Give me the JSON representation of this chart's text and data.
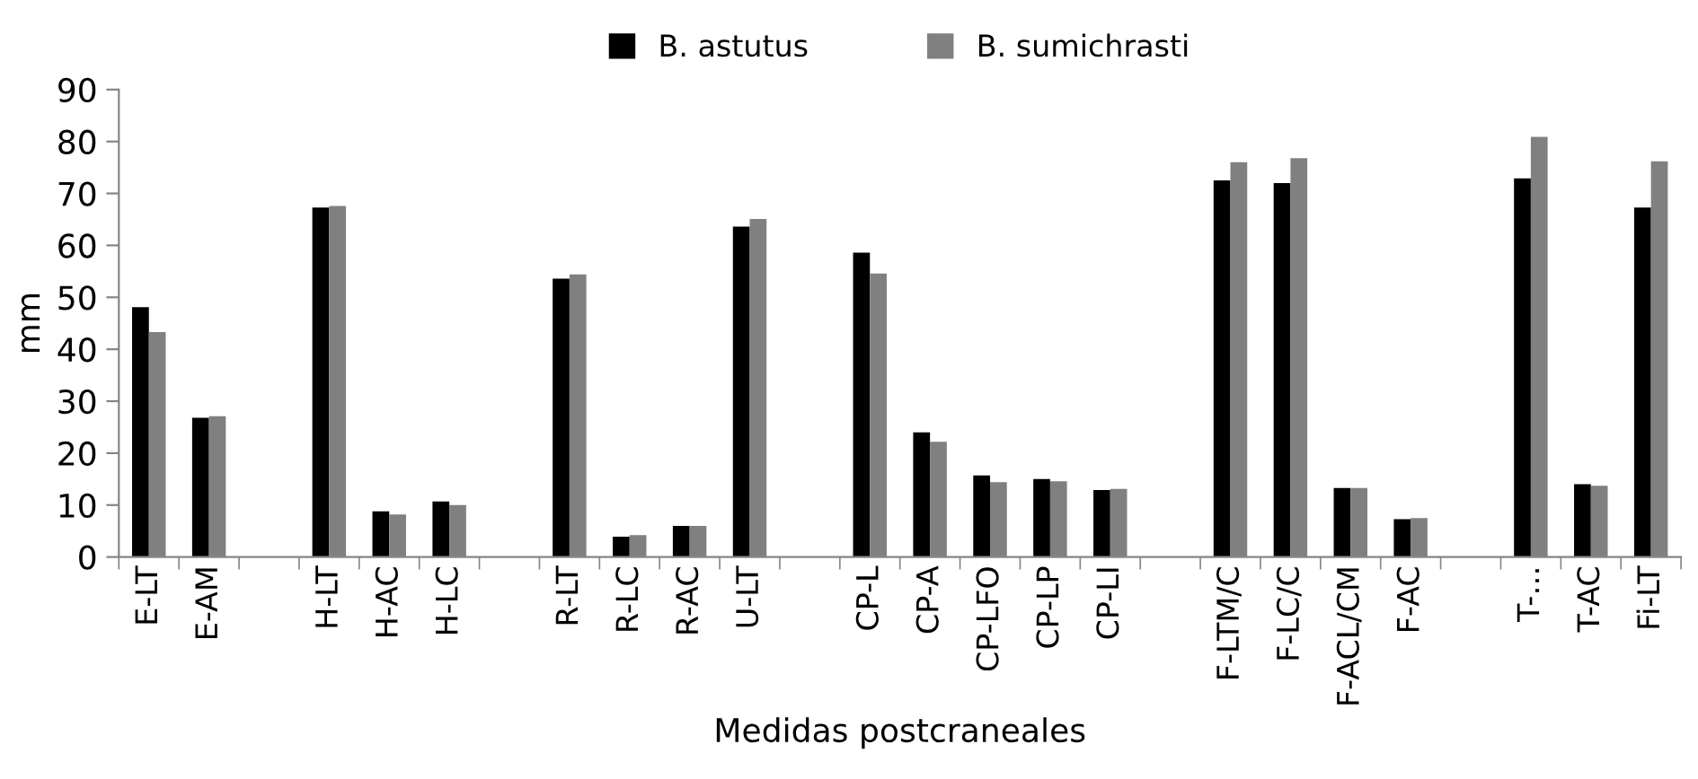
{
  "chart_data": {
    "type": "bar",
    "xlabel": "Medidas postcraneales",
    "ylabel": "mm",
    "categories": [
      "E-LT",
      "E-AM",
      null,
      "H-LT",
      "H-AC",
      "H-LC",
      null,
      "R-LT",
      "R-LC",
      "R-AC",
      "U-LT",
      null,
      "CP-L",
      "CP-A",
      "CP-LFO",
      "CP-LP",
      "CP-LI",
      null,
      "F-LTM/C",
      "F-LC/C",
      "F-ACL/CM",
      "F-AC",
      null,
      "T-…",
      "T-AC",
      "Fi-LT"
    ],
    "series": [
      {
        "name": "B. astutus",
        "color": "#000000",
        "values": [
          48.1,
          26.8,
          null,
          67.3,
          8.8,
          10.7,
          null,
          53.6,
          3.9,
          6.0,
          63.6,
          null,
          58.6,
          24.0,
          15.7,
          15.0,
          12.9,
          null,
          72.5,
          72.0,
          13.3,
          7.3,
          null,
          72.9,
          14.0,
          67.3
        ]
      },
      {
        "name": "B. sumichrasti",
        "color": "#808080",
        "values": [
          43.3,
          27.1,
          null,
          67.6,
          8.2,
          10.0,
          null,
          54.4,
          4.2,
          6.0,
          65.1,
          null,
          54.6,
          22.2,
          14.4,
          14.6,
          13.1,
          null,
          76.0,
          76.8,
          13.3,
          7.5,
          null,
          80.9,
          13.7,
          76.2
        ]
      }
    ],
    "ylim": [
      0,
      90
    ],
    "yticks": [
      0,
      10,
      20,
      30,
      40,
      50,
      60,
      70,
      80,
      90
    ],
    "grid": false,
    "legend": "top"
  }
}
